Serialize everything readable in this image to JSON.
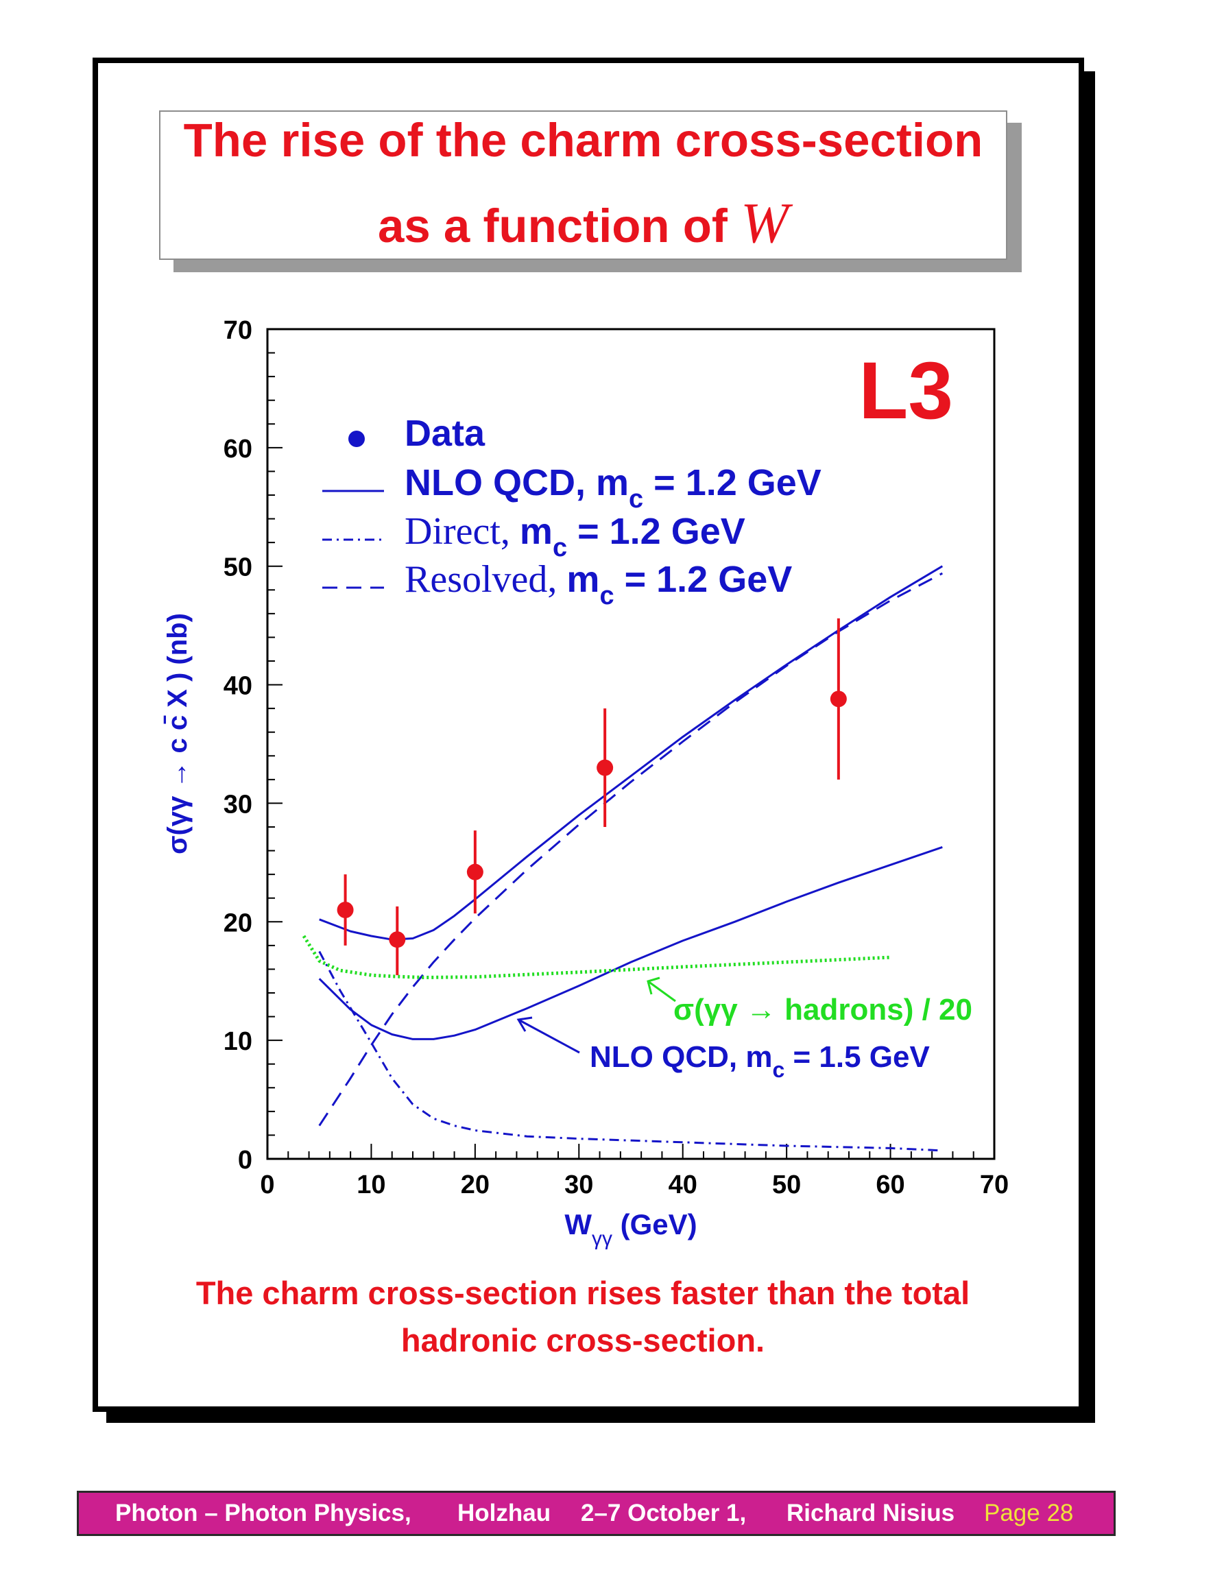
{
  "slide": {
    "title_line1": "The rise of the charm cross-section",
    "title_line2_text": "as a function of ",
    "title_line2_symbol": "W",
    "caption_line1": "The charm cross-section rises faster than the total",
    "caption_line2": "hadronic cross-section."
  },
  "footer": {
    "part1": "Photon – Photon Physics,",
    "part2": "Holzhau",
    "part3": "2–7 October 1,",
    "part4": "Richard Nisius",
    "page": "Page 28"
  },
  "colors": {
    "title": "#e8141e",
    "curves": "#1414c8",
    "data": "#e8141e",
    "hadrons": "#22dd22",
    "footer_bg": "#cc1f8f",
    "footer_page": "#f0e23a"
  },
  "chart_data": {
    "type": "line",
    "experiment_label": "L3",
    "xlabel_main": "W",
    "xlabel_sub": "γγ",
    "xlabel_unit": "(GeV)",
    "ylabel": "σ(γγ → c c̄ X )  (nb)",
    "xlim": [
      0,
      70
    ],
    "ylim": [
      0,
      70
    ],
    "x_ticks": [
      0,
      10,
      20,
      30,
      40,
      50,
      60,
      70
    ],
    "y_ticks": [
      0,
      10,
      20,
      30,
      40,
      50,
      60,
      70
    ],
    "legend": [
      {
        "key": "data",
        "label_main": "Data",
        "label_sub": "",
        "label_tail": ""
      },
      {
        "key": "nlo12",
        "label_main": "NLO QCD, m",
        "label_sub": "c",
        "label_tail": " = 1.2 GeV"
      },
      {
        "key": "direct",
        "label_main": "Direct, ",
        "label_main2": "m",
        "label_sub": "c",
        "label_tail": " = 1.2 GeV"
      },
      {
        "key": "resolved",
        "label_main": "Resolved, ",
        "label_main2": "m",
        "label_sub": "c",
        "label_tail": " = 1.2 GeV"
      }
    ],
    "annotations": {
      "hadrons_label": "σ(γγ → hadrons) / 20",
      "nlo15_main": "NLO QCD, m",
      "nlo15_sub": "c",
      "nlo15_tail": " = 1.5 GeV"
    },
    "data_points": [
      {
        "x": 7.5,
        "y": 21.0,
        "err_low": 3.0,
        "err_high": 3.0
      },
      {
        "x": 12.5,
        "y": 18.5,
        "err_low": 3.0,
        "err_high": 2.8
      },
      {
        "x": 20.0,
        "y": 24.2,
        "err_low": 3.5,
        "err_high": 3.5
      },
      {
        "x": 32.5,
        "y": 33.0,
        "err_low": 5.0,
        "err_high": 5.0
      },
      {
        "x": 55.0,
        "y": 38.8,
        "err_low": 6.8,
        "err_high": 6.8
      }
    ],
    "series": [
      {
        "key": "nlo12",
        "style": "solid",
        "x": [
          5,
          8,
          10,
          12,
          14,
          16,
          18,
          20,
          25,
          30,
          35,
          40,
          45,
          50,
          55,
          60,
          65
        ],
        "y": [
          20.2,
          19.2,
          18.8,
          18.5,
          18.6,
          19.3,
          20.5,
          21.9,
          25.5,
          29.0,
          32.3,
          35.6,
          38.7,
          41.7,
          44.6,
          47.4,
          50.0
        ]
      },
      {
        "key": "resolved",
        "style": "dashed",
        "x": [
          5,
          8,
          10,
          12,
          14,
          16,
          18,
          20,
          25,
          30,
          35,
          40,
          45,
          50,
          55,
          60,
          65
        ],
        "y": [
          2.8,
          6.8,
          9.6,
          12.2,
          14.5,
          16.6,
          18.5,
          20.3,
          24.4,
          28.2,
          31.8,
          35.2,
          38.5,
          41.6,
          44.5,
          47.1,
          49.4
        ]
      },
      {
        "key": "direct",
        "style": "dashdot",
        "x": [
          5,
          7,
          10,
          12,
          14,
          16,
          18,
          20,
          25,
          30,
          40,
          50,
          60,
          65
        ],
        "y": [
          17.5,
          14.2,
          9.8,
          6.8,
          4.6,
          3.4,
          2.8,
          2.4,
          1.9,
          1.7,
          1.4,
          1.1,
          0.9,
          0.7
        ]
      },
      {
        "key": "nlo15",
        "style": "solid",
        "x": [
          5,
          8,
          10,
          12,
          14,
          16,
          18,
          20,
          25,
          30,
          35,
          40,
          45,
          50,
          55,
          60,
          65
        ],
        "y": [
          15.2,
          12.6,
          11.3,
          10.5,
          10.1,
          10.1,
          10.4,
          10.9,
          12.7,
          14.6,
          16.6,
          18.4,
          20.0,
          21.7,
          23.3,
          24.8,
          26.3
        ]
      },
      {
        "key": "hadrons",
        "style": "dotted",
        "x": [
          3.5,
          5,
          7,
          10,
          12,
          15,
          20,
          25,
          30,
          40,
          50,
          60
        ],
        "y": [
          18.8,
          16.7,
          15.9,
          15.5,
          15.4,
          15.3,
          15.35,
          15.55,
          15.75,
          16.2,
          16.6,
          17.0
        ]
      }
    ]
  }
}
